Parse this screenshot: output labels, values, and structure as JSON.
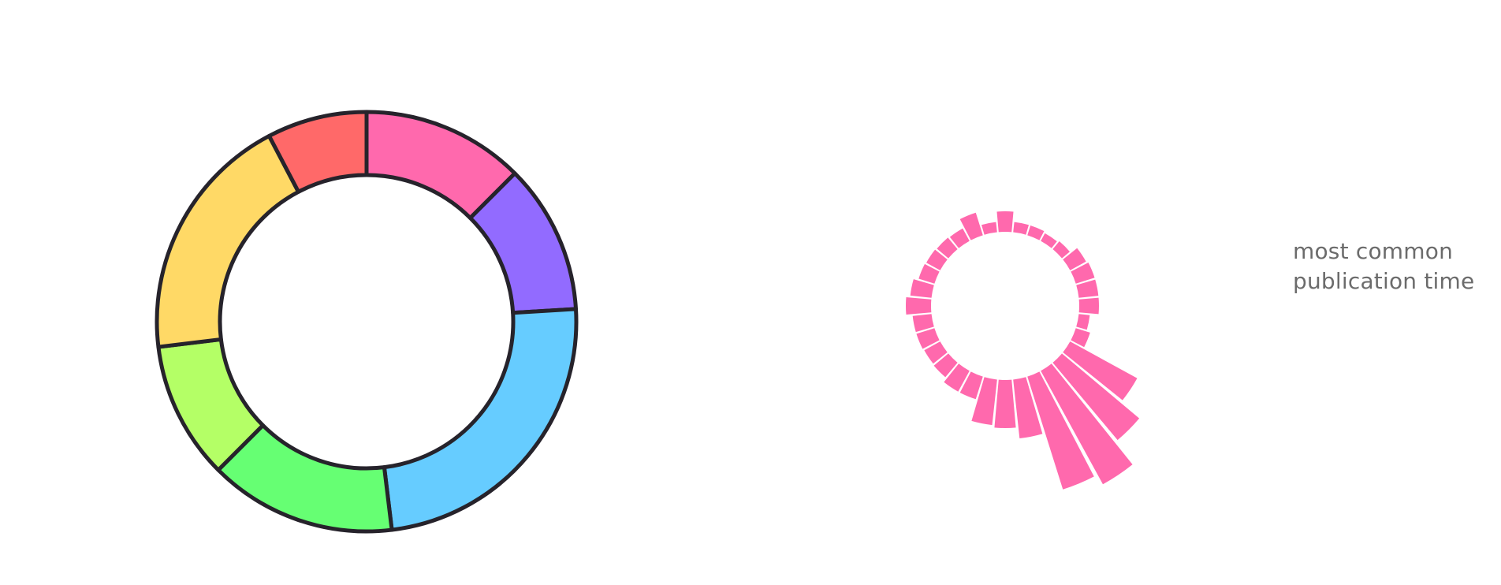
{
  "chart_data": [
    {
      "type": "pie",
      "variant": "donut",
      "title": "",
      "series": [
        {
          "values": [
            13,
            12,
            25,
            15,
            11,
            20,
            8
          ],
          "colors": [
            "#ff69ad",
            "#926bff",
            "#66ccff",
            "#66ff73",
            "#b4ff66",
            "#ffd966",
            "#ff6969"
          ]
        }
      ]
    },
    {
      "type": "bar",
      "variant": "radial",
      "title": "",
      "bar_color": "#ff69ad",
      "categories": [
        "0",
        "1",
        "2",
        "3",
        "4",
        "5",
        "6",
        "7",
        "8",
        "9",
        "10",
        "11",
        "12",
        "13",
        "14",
        "15",
        "16",
        "17",
        "18",
        "19",
        "20",
        "21",
        "22",
        "23",
        "24",
        "25",
        "26",
        "27",
        "28",
        "29",
        "30",
        "31"
      ],
      "values": [
        26,
        13,
        13,
        11,
        13,
        23,
        25,
        25,
        25,
        14,
        19,
        97,
        128,
        164,
        150,
        75,
        61,
        58,
        30,
        30,
        24,
        23,
        24,
        24,
        32,
        27,
        21,
        20,
        19,
        18,
        30,
        13
      ],
      "caption": [
        "most common",
        "publication time"
      ]
    }
  ]
}
